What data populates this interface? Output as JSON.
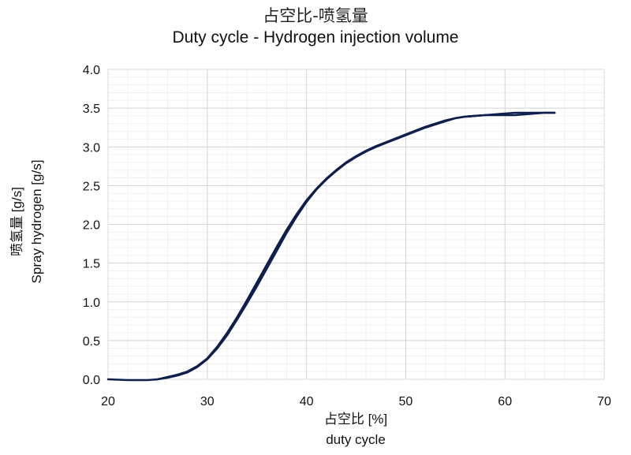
{
  "chart_data": {
    "type": "line",
    "title": "占空比-喷氢量",
    "subtitle": "Duty cycle - Hydrogen injection volume",
    "xlabel": "占空比 [%]",
    "xlabel_en": "duty cycle",
    "ylabel": "喷氢量 [g/s]",
    "ylabel_en": "Spray hydrogen [g/s]",
    "xlim": [
      20,
      70
    ],
    "ylim": [
      0,
      4.0
    ],
    "x_ticks": [
      "20",
      "30",
      "40",
      "50",
      "60",
      "70"
    ],
    "y_ticks": [
      "0.0",
      "0.5",
      "1.0",
      "1.5",
      "2.0",
      "2.5",
      "3.0",
      "3.5",
      "4.0"
    ],
    "grid": true,
    "minor_grid": true,
    "legend": "none",
    "line_color": "#0f1f4d",
    "series": [
      {
        "x": [
          20,
          22,
          24,
          25,
          26,
          27,
          28,
          29,
          30,
          31,
          32,
          33,
          34,
          35,
          36,
          37,
          38,
          39,
          40,
          41,
          42,
          43,
          44,
          45,
          46,
          47,
          48,
          49,
          50,
          51,
          52,
          53,
          54,
          55,
          56,
          57,
          58,
          59,
          60,
          61,
          62,
          63,
          64,
          65
        ],
        "y": [
          0.0,
          -0.01,
          -0.01,
          0.0,
          0.03,
          0.06,
          0.1,
          0.17,
          0.27,
          0.42,
          0.6,
          0.8,
          1.02,
          1.25,
          1.48,
          1.71,
          1.93,
          2.13,
          2.31,
          2.46,
          2.59,
          2.7,
          2.8,
          2.88,
          2.95,
          3.01,
          3.06,
          3.11,
          3.16,
          3.21,
          3.26,
          3.3,
          3.34,
          3.37,
          3.39,
          3.4,
          3.41,
          3.42,
          3.43,
          3.44,
          3.44,
          3.44,
          3.44,
          3.44
        ]
      },
      {
        "x": [
          65,
          64,
          63,
          62,
          61,
          60,
          59,
          58,
          57,
          56,
          55,
          54,
          53,
          52,
          51,
          50,
          49,
          48,
          47,
          46,
          45,
          44,
          43,
          42,
          41,
          40,
          39,
          38,
          37,
          36,
          35,
          34,
          33,
          32,
          31,
          30,
          29,
          28,
          27,
          26,
          25
        ],
        "y": [
          3.44,
          3.44,
          3.43,
          3.42,
          3.41,
          3.41,
          3.41,
          3.41,
          3.4,
          3.39,
          3.37,
          3.33,
          3.29,
          3.25,
          3.2,
          3.15,
          3.1,
          3.05,
          3.0,
          2.94,
          2.87,
          2.79,
          2.69,
          2.58,
          2.45,
          2.29,
          2.1,
          1.89,
          1.66,
          1.43,
          1.2,
          0.98,
          0.77,
          0.57,
          0.4,
          0.26,
          0.16,
          0.09,
          0.05,
          0.02,
          0.0
        ]
      }
    ]
  }
}
